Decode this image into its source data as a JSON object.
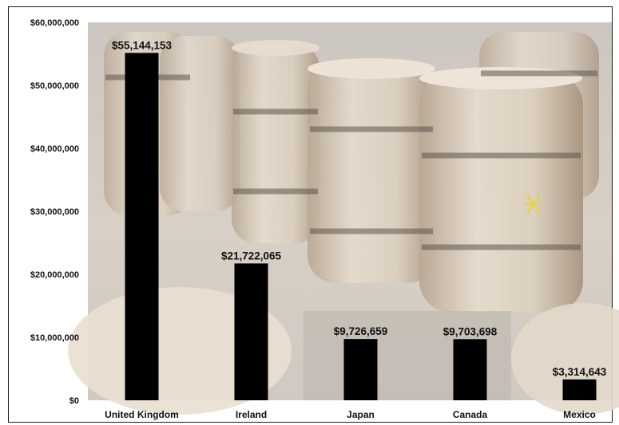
{
  "chart_data": {
    "type": "bar",
    "title": "",
    "xlabel": "",
    "ylabel": "",
    "categories": [
      "United Kingdom",
      "Ireland",
      "Japan",
      "Canada",
      "Mexico"
    ],
    "values": [
      55144153,
      21722065,
      9726659,
      9703698,
      3314643
    ],
    "data_labels": [
      "$55,144,153",
      "$21,722,065",
      "$9,726,659",
      "$9,703,698",
      "$3,314,643"
    ],
    "ylim": [
      0,
      60000000
    ],
    "yticks": [
      0,
      10000000,
      20000000,
      30000000,
      40000000,
      50000000,
      60000000
    ],
    "ytick_labels": [
      "$0",
      "$10,000,000",
      "$20,000,000",
      "$30,000,000",
      "$40,000,000",
      "$50,000,000",
      "$60,000,000"
    ],
    "grid": false,
    "legend": "none",
    "bar_color": "#000000",
    "background": "photo of oak whiskey barrels in a warehouse"
  }
}
